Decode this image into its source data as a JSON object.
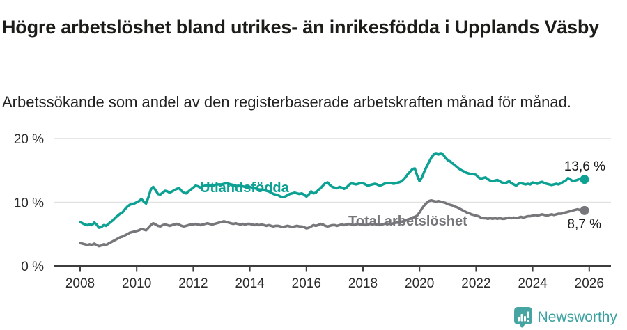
{
  "header": {
    "title": "Högre arbetslöshet bland utrikes- än inrikesfödda i Upplands Väsby",
    "subtitle": "Arbetssökande som andel av den registerbaserade arbetskraften månad för månad."
  },
  "footer": {
    "brand": "Newsworthy"
  },
  "colors": {
    "accent_teal": "#0da194",
    "series_gray": "#76767b",
    "logo_teal": "#46a5a2",
    "grid": "#e1e1e1",
    "axis": "#3d3d3d"
  },
  "chart_data": {
    "type": "line",
    "title": "Högre arbetslöshet bland utrikes- än inrikesfödda i Upplands Väsby",
    "subtitle": "Arbetssökande som andel av den registerbaserade arbetskraften månad för månad.",
    "x_unit": "decimal_year_monthly",
    "xlim": [
      2007.1,
      2026.8
    ],
    "ylim": [
      0,
      20
    ],
    "grid": "horizontal",
    "legend": "inline-labels-on-lines",
    "yticks": [
      {
        "value": 20,
        "label": "20 %"
      },
      {
        "value": 10,
        "label": "10 %"
      },
      {
        "value": 0,
        "label": "0 %"
      }
    ],
    "xticks": [
      {
        "value": 2008,
        "label": "2008"
      },
      {
        "value": 2010,
        "label": "2010"
      },
      {
        "value": 2012,
        "label": "2012"
      },
      {
        "value": 2014,
        "label": "2014"
      },
      {
        "value": 2016,
        "label": "2016"
      },
      {
        "value": 2018,
        "label": "2018"
      },
      {
        "value": 2020,
        "label": "2020"
      },
      {
        "value": 2022,
        "label": "2022"
      },
      {
        "value": 2024,
        "label": "2024"
      },
      {
        "value": 2026,
        "label": "2026"
      }
    ],
    "series": [
      {
        "name": "Utlandsfödda",
        "color": "#0da194",
        "end_label": "13,6 %",
        "last_value": 13.6,
        "start_year": 2008,
        "interval_months": 1,
        "values": [
          6.9,
          6.7,
          6.5,
          6.4,
          6.5,
          6.4,
          6.8,
          6.5,
          6.0,
          6.1,
          6.4,
          6.3,
          6.6,
          6.9,
          7.2,
          7.6,
          7.9,
          8.2,
          8.4,
          8.9,
          9.3,
          9.6,
          9.7,
          9.8,
          10.0,
          10.2,
          10.5,
          10.1,
          9.8,
          10.8,
          12.0,
          12.4,
          11.9,
          11.3,
          11.2,
          11.5,
          11.8,
          11.7,
          11.5,
          11.7,
          11.9,
          12.1,
          12.2,
          11.8,
          11.5,
          11.4,
          11.7,
          12.0,
          12.3,
          12.6,
          12.5,
          12.3,
          12.5,
          12.6,
          12.7,
          12.6,
          12.5,
          12.7,
          12.8,
          12.8,
          12.8,
          12.9,
          13.0,
          12.9,
          12.8,
          12.7,
          12.6,
          12.5,
          12.6,
          12.5,
          12.4,
          12.4,
          12.4,
          12.3,
          12.2,
          12.1,
          12.0,
          12.0,
          11.9,
          11.8,
          11.7,
          11.5,
          11.3,
          11.2,
          11.1,
          10.9,
          10.8,
          10.9,
          11.1,
          11.3,
          11.4,
          11.5,
          11.4,
          11.3,
          11.4,
          11.2,
          10.9,
          11.2,
          11.7,
          11.4,
          11.5,
          11.9,
          12.2,
          12.6,
          13.0,
          13.1,
          12.7,
          12.4,
          12.3,
          12.2,
          12.4,
          12.3,
          12.1,
          12.3,
          12.7,
          13.0,
          12.9,
          12.8,
          12.9,
          13.0,
          13.0,
          12.8,
          12.6,
          12.7,
          12.8,
          12.9,
          12.8,
          12.6,
          12.7,
          12.9,
          13.0,
          13.0,
          13.0,
          12.9,
          13.0,
          13.1,
          13.2,
          13.5,
          13.9,
          14.4,
          14.8,
          15.2,
          15.3,
          14.2,
          13.3,
          13.9,
          14.8,
          15.6,
          16.3,
          17.0,
          17.5,
          17.6,
          17.5,
          17.6,
          17.5,
          17.0,
          16.6,
          16.4,
          16.1,
          15.8,
          15.5,
          15.2,
          15.0,
          14.8,
          14.6,
          14.5,
          14.4,
          14.4,
          14.3,
          13.9,
          13.7,
          13.8,
          13.9,
          13.6,
          13.4,
          13.3,
          13.4,
          13.5,
          13.3,
          13.1,
          13.0,
          13.1,
          13.3,
          13.0,
          12.8,
          12.6,
          12.9,
          13.0,
          12.9,
          12.8,
          12.9,
          12.8,
          13.1,
          13.0,
          12.9,
          13.1,
          13.2,
          13.0,
          12.9,
          12.8,
          12.7,
          12.8,
          12.9,
          12.8,
          13.0,
          13.2,
          13.4,
          13.8,
          13.6,
          13.3,
          13.4,
          13.5,
          13.7,
          13.4,
          13.6
        ]
      },
      {
        "name": "Total arbetslöshet",
        "color": "#76767b",
        "end_label": "8,7 %",
        "last_value": 8.7,
        "start_year": 2008,
        "interval_months": 1,
        "values": [
          3.6,
          3.5,
          3.4,
          3.3,
          3.4,
          3.3,
          3.5,
          3.3,
          3.1,
          3.2,
          3.4,
          3.3,
          3.5,
          3.7,
          3.9,
          4.1,
          4.3,
          4.5,
          4.6,
          4.8,
          5.0,
          5.2,
          5.3,
          5.4,
          5.5,
          5.6,
          5.8,
          5.7,
          5.6,
          6.0,
          6.4,
          6.7,
          6.5,
          6.3,
          6.2,
          6.4,
          6.5,
          6.4,
          6.3,
          6.4,
          6.5,
          6.6,
          6.5,
          6.3,
          6.2,
          6.3,
          6.4,
          6.5,
          6.5,
          6.6,
          6.5,
          6.4,
          6.5,
          6.6,
          6.7,
          6.6,
          6.5,
          6.6,
          6.7,
          6.8,
          6.9,
          7.0,
          6.9,
          6.8,
          6.7,
          6.6,
          6.7,
          6.6,
          6.5,
          6.6,
          6.5,
          6.6,
          6.6,
          6.5,
          6.4,
          6.5,
          6.4,
          6.5,
          6.4,
          6.3,
          6.4,
          6.3,
          6.2,
          6.3,
          6.3,
          6.2,
          6.1,
          6.2,
          6.3,
          6.2,
          6.1,
          6.2,
          6.3,
          6.2,
          6.2,
          6.1,
          5.9,
          6.0,
          6.2,
          6.4,
          6.3,
          6.4,
          6.6,
          6.5,
          6.3,
          6.2,
          6.3,
          6.4,
          6.4,
          6.3,
          6.4,
          6.5,
          6.4,
          6.5,
          6.6,
          6.5,
          6.4,
          6.5,
          6.6,
          6.5,
          6.5,
          6.4,
          6.5,
          6.6,
          6.5,
          6.6,
          6.5,
          6.4,
          6.5,
          6.6,
          6.7,
          6.6,
          6.6,
          6.7,
          6.8,
          6.8,
          6.9,
          7.0,
          7.1,
          7.3,
          7.4,
          7.6,
          7.7,
          7.9,
          8.4,
          9.0,
          9.5,
          9.9,
          10.2,
          10.3,
          10.2,
          10.1,
          10.2,
          10.1,
          10.0,
          9.9,
          9.7,
          9.6,
          9.5,
          9.3,
          9.2,
          9.0,
          8.8,
          8.6,
          8.4,
          8.3,
          8.1,
          8.0,
          7.9,
          7.8,
          7.6,
          7.5,
          7.5,
          7.4,
          7.5,
          7.4,
          7.5,
          7.4,
          7.5,
          7.4,
          7.4,
          7.5,
          7.6,
          7.5,
          7.6,
          7.5,
          7.6,
          7.7,
          7.6,
          7.7,
          7.8,
          7.8,
          7.9,
          8.0,
          7.9,
          8.0,
          8.1,
          8.0,
          7.9,
          8.0,
          8.1,
          8.0,
          8.1,
          8.2,
          8.2,
          8.3,
          8.4,
          8.5,
          8.6,
          8.7,
          8.8,
          8.9,
          8.8,
          8.6,
          8.7
        ]
      }
    ]
  }
}
